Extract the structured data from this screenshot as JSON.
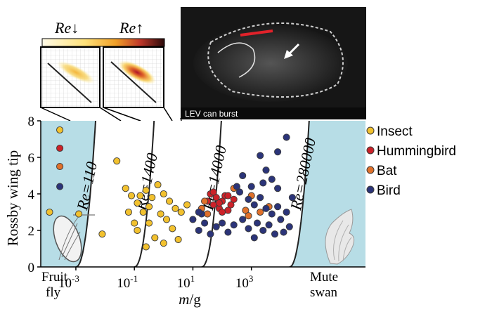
{
  "chart_data": {
    "type": "scatter",
    "title": "",
    "xlabel": "m/g",
    "ylabel": "Rossby wing tip",
    "xscale": "log10",
    "xlim": [
      -4.2,
      6.9
    ],
    "ylim": [
      0,
      8
    ],
    "x_ticks": [
      {
        "value": -3,
        "label": "10",
        "exp": "-3"
      },
      {
        "value": -1,
        "label": "10",
        "exp": "-1"
      },
      {
        "value": 1,
        "label": "10",
        "exp": "1"
      },
      {
        "value": 3,
        "label": "10",
        "exp": "3"
      }
    ],
    "y_ticks": [
      0,
      2,
      4,
      6,
      8
    ],
    "end_labels": {
      "left": [
        "Fruit",
        "fly"
      ],
      "right": [
        "Mute",
        "swan"
      ]
    },
    "reynolds_curves": [
      {
        "label": "Re=110",
        "x0": -3.0
      },
      {
        "label": "Re=1400",
        "x0": -1.0
      },
      {
        "label": "Re=14000",
        "x0": 1.3
      },
      {
        "label": "Re=280000",
        "x0": 4.3
      }
    ],
    "legend_position": "right",
    "series": [
      {
        "name": "Insect",
        "color": "#f2c12e",
        "points": [
          [
            -3.55,
            7.5
          ],
          [
            -3.9,
            3.0
          ],
          [
            -2.9,
            2.9
          ],
          [
            -2.1,
            1.8
          ],
          [
            -1.6,
            5.8
          ],
          [
            -1.3,
            4.3
          ],
          [
            -1.1,
            3.9
          ],
          [
            -0.9,
            3.5
          ],
          [
            -0.8,
            3.9
          ],
          [
            -0.6,
            4.2
          ],
          [
            -0.5,
            3.3
          ],
          [
            -0.4,
            3.8
          ],
          [
            -0.2,
            4.5
          ],
          [
            0.0,
            4.0
          ],
          [
            0.2,
            3.6
          ],
          [
            0.4,
            3.2
          ],
          [
            0.1,
            2.6
          ],
          [
            -0.5,
            2.4
          ],
          [
            -0.9,
            2.0
          ],
          [
            -0.3,
            1.6
          ],
          [
            0.0,
            1.3
          ],
          [
            -0.6,
            1.1
          ],
          [
            0.3,
            2.1
          ],
          [
            0.5,
            1.5
          ],
          [
            -1.2,
            3.0
          ],
          [
            -0.7,
            3.0
          ],
          [
            0.6,
            3.0
          ],
          [
            -0.1,
            2.9
          ],
          [
            0.8,
            3.4
          ],
          [
            -1.0,
            2.4
          ]
        ]
      },
      {
        "name": "Hummingbird",
        "color": "#cc2229",
        "points": [
          [
            -3.55,
            6.5
          ],
          [
            1.6,
            4.0
          ],
          [
            1.8,
            3.8
          ],
          [
            2.0,
            3.6
          ],
          [
            1.7,
            3.4
          ],
          [
            1.9,
            3.2
          ],
          [
            2.1,
            3.9
          ],
          [
            2.3,
            3.4
          ],
          [
            2.2,
            3.1
          ],
          [
            1.5,
            3.6
          ],
          [
            2.4,
            3.7
          ],
          [
            2.0,
            3.0
          ],
          [
            1.7,
            4.1
          ],
          [
            2.2,
            3.9
          ],
          [
            1.9,
            3.5
          ]
        ]
      },
      {
        "name": "Bat",
        "color": "#e0702a",
        "points": [
          [
            -3.55,
            5.5
          ],
          [
            1.4,
            3.6
          ],
          [
            1.3,
            3.2
          ],
          [
            2.8,
            3.1
          ],
          [
            2.9,
            2.8
          ],
          [
            3.3,
            3.0
          ],
          [
            3.6,
            3.3
          ],
          [
            2.4,
            4.3
          ],
          [
            1.5,
            2.9
          ],
          [
            3.0,
            3.9
          ]
        ]
      },
      {
        "name": "Bird",
        "color": "#2b3479",
        "points": [
          [
            -3.55,
            4.4
          ],
          [
            1.2,
            2.0
          ],
          [
            1.4,
            2.4
          ],
          [
            1.6,
            1.8
          ],
          [
            1.8,
            2.2
          ],
          [
            1.0,
            2.6
          ],
          [
            1.3,
            2.9
          ],
          [
            2.5,
            4.4
          ],
          [
            2.7,
            5.0
          ],
          [
            2.6,
            4.1
          ],
          [
            2.9,
            3.7
          ],
          [
            3.1,
            3.4
          ],
          [
            3.3,
            3.8
          ],
          [
            3.5,
            3.2
          ],
          [
            3.7,
            2.9
          ],
          [
            3.9,
            3.3
          ],
          [
            4.0,
            2.6
          ],
          [
            4.2,
            3.0
          ],
          [
            3.2,
            2.4
          ],
          [
            3.4,
            2.0
          ],
          [
            3.6,
            2.3
          ],
          [
            3.8,
            1.8
          ],
          [
            4.3,
            2.2
          ],
          [
            2.9,
            2.1
          ],
          [
            2.7,
            2.6
          ],
          [
            2.4,
            2.3
          ],
          [
            3.0,
            4.4
          ],
          [
            3.4,
            4.6
          ],
          [
            3.7,
            4.8
          ],
          [
            3.9,
            4.3
          ],
          [
            3.5,
            5.3
          ],
          [
            3.9,
            6.3
          ],
          [
            4.2,
            7.1
          ],
          [
            3.3,
            6.1
          ],
          [
            4.4,
            3.8
          ],
          [
            4.1,
            1.9
          ],
          [
            3.1,
            1.6
          ],
          [
            2.2,
            1.9
          ],
          [
            2.0,
            2.4
          ],
          [
            1.2,
            3.0
          ]
        ]
      }
    ]
  },
  "insets": {
    "colorbar_low_label": "Re↓",
    "colorbar_high_label": "Re↑",
    "photo_caption": "LEV can burst"
  }
}
